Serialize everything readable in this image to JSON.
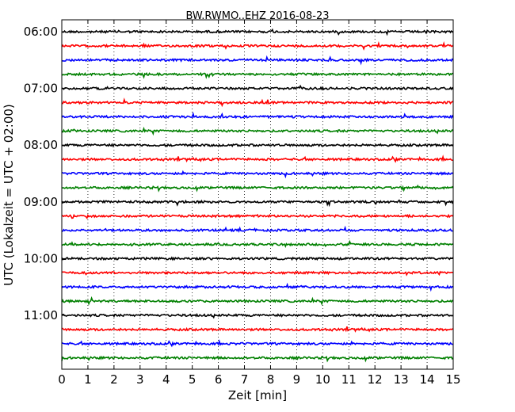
{
  "chart_data": {
    "type": "line",
    "title": "BW.RWMO..EHZ 2016-08-23",
    "xlabel": "Zeit  [min]",
    "ylabel": "UTC (Lokalzeit = UTC + 02:00)",
    "xlim": [
      0,
      15
    ],
    "x_ticks": [
      "0",
      "1",
      "2",
      "3",
      "4",
      "5",
      "6",
      "7",
      "8",
      "9",
      "10",
      "11",
      "12",
      "13",
      "14",
      "15"
    ],
    "y_ticks": [
      "06:00",
      "07:00",
      "08:00",
      "09:00",
      "10:00",
      "11:00"
    ],
    "trace_start_times": [
      "06:00",
      "06:15",
      "06:30",
      "06:45",
      "07:00",
      "07:15",
      "07:30",
      "07:45",
      "08:00",
      "08:15",
      "08:30",
      "08:45",
      "09:00",
      "09:15",
      "09:30",
      "09:45",
      "10:00",
      "10:15",
      "10:30",
      "10:45",
      "11:00",
      "11:15",
      "11:30",
      "11:45"
    ],
    "trace_colors": [
      "#000000",
      "#ff0000",
      "#0000ff",
      "#008000"
    ],
    "grid": "vertical dotted",
    "legend": "none"
  }
}
